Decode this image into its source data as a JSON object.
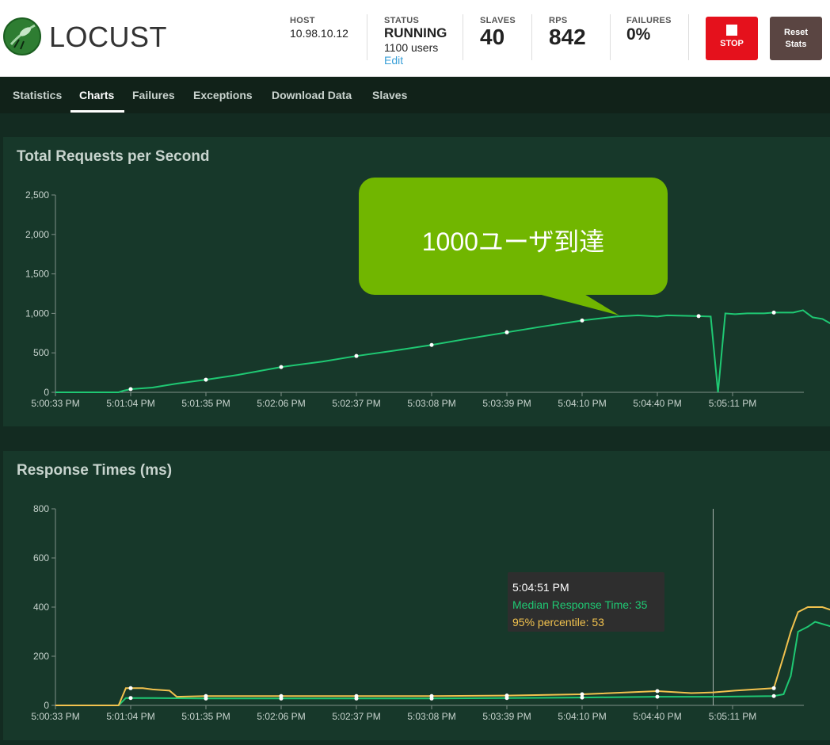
{
  "header": {
    "logo_text": "LOCUST",
    "host": {
      "label": "HOST",
      "value": "10.98.10.12"
    },
    "status": {
      "label": "STATUS",
      "value": "RUNNING",
      "users": "1100 users",
      "edit_label": "Edit"
    },
    "slaves": {
      "label": "SLAVES",
      "value": "40"
    },
    "rps": {
      "label": "RPS",
      "value": "842"
    },
    "failures": {
      "label": "FAILURES",
      "value": "0%"
    },
    "stop_label": "STOP",
    "reset_label_line1": "Reset",
    "reset_label_line2": "Stats"
  },
  "nav": {
    "tabs": [
      {
        "label": "Statistics"
      },
      {
        "label": "Charts"
      },
      {
        "label": "Failures"
      },
      {
        "label": "Exceptions"
      },
      {
        "label": "Download Data"
      },
      {
        "label": "Slaves"
      }
    ],
    "active": "Charts"
  },
  "colors": {
    "rps_line": "#1fc873",
    "median_line": "#1fc873",
    "p95_line": "#f2c24e",
    "callout": "#71b600",
    "stop": "#e5111c"
  },
  "callout": {
    "text": "1000ユーザ到達"
  },
  "tooltip": {
    "time": "5:04:51 PM",
    "median": "Median Response Time: 35",
    "p95": "95% percentile: 53"
  },
  "chart_data": [
    {
      "type": "line",
      "title": "Total Requests per Second",
      "x_ticks": [
        "5:00:33 PM",
        "5:01:04 PM",
        "5:01:35 PM",
        "5:02:06 PM",
        "5:02:37 PM",
        "5:03:08 PM",
        "5:03:39 PM",
        "5:04:10 PM",
        "5:04:40 PM",
        "5:05:11 PM"
      ],
      "y_ticks": [
        "0",
        "500",
        "1,000",
        "1,500",
        "2,000",
        "2,500"
      ],
      "ylim": [
        0,
        2500
      ],
      "xlim_seconds": [
        0,
        298
      ],
      "series": [
        {
          "points": [
            [
              0,
              0
            ],
            [
              26,
              0
            ],
            [
              28,
              20
            ],
            [
              31,
              40
            ],
            [
              40,
              60
            ],
            [
              50,
              110
            ],
            [
              62,
              160
            ],
            [
              75,
              220
            ],
            [
              93,
              320
            ],
            [
              110,
              390
            ],
            [
              124,
              460
            ],
            [
              140,
              530
            ],
            [
              155,
              600
            ],
            [
              170,
              680
            ],
            [
              186,
              760
            ],
            [
              200,
              830
            ],
            [
              217,
              910
            ],
            [
              231,
              960
            ],
            [
              240,
              975
            ],
            [
              248,
              960
            ],
            [
              252,
              975
            ],
            [
              265,
              965
            ],
            [
              270,
              960
            ],
            [
              273,
              0
            ],
            [
              276,
              1000
            ],
            [
              280,
              990
            ],
            [
              285,
              1000
            ],
            [
              292,
              1000
            ],
            [
              296,
              1010
            ],
            [
              304,
              1010
            ],
            [
              308,
              1040
            ],
            [
              312,
              950
            ],
            [
              316,
              930
            ],
            [
              320,
              860
            ],
            [
              326,
              840
            ],
            [
              334,
              840
            ],
            [
              345,
              850
            ],
            [
              355,
              840
            ]
          ],
          "markers": [
            [
              31,
              40
            ],
            [
              62,
              160
            ],
            [
              93,
              320
            ],
            [
              124,
              460
            ],
            [
              155,
              600
            ],
            [
              186,
              760
            ],
            [
              217,
              910
            ],
            [
              265,
              965
            ],
            [
              296,
              1010
            ]
          ]
        }
      ]
    },
    {
      "type": "line",
      "title": "Response Times (ms)",
      "x_ticks": [
        "5:00:33 PM",
        "5:01:04 PM",
        "5:01:35 PM",
        "5:02:06 PM",
        "5:02:37 PM",
        "5:03:08 PM",
        "5:03:39 PM",
        "5:04:10 PM",
        "5:04:40 PM",
        "5:05:11 PM"
      ],
      "y_ticks": [
        "0",
        "200",
        "400",
        "600",
        "800"
      ],
      "ylim": [
        0,
        800
      ],
      "hover_x": 271,
      "series": [
        {
          "name": "Median Response Time",
          "points": [
            [
              0,
              0
            ],
            [
              26,
              0
            ],
            [
              29,
              30
            ],
            [
              40,
              30
            ],
            [
              62,
              28
            ],
            [
              93,
              28
            ],
            [
              124,
              28
            ],
            [
              155,
              28
            ],
            [
              186,
              30
            ],
            [
              217,
              32
            ],
            [
              248,
              35
            ],
            [
              271,
              35
            ],
            [
              296,
              38
            ],
            [
              300,
              45
            ],
            [
              303,
              120
            ],
            [
              306,
              300
            ],
            [
              310,
              320
            ],
            [
              313,
              340
            ],
            [
              320,
              320
            ],
            [
              326,
              300
            ],
            [
              335,
              300
            ]
          ],
          "markers": [
            [
              31,
              30
            ],
            [
              62,
              28
            ],
            [
              93,
              28
            ],
            [
              124,
              28
            ],
            [
              155,
              28
            ],
            [
              186,
              30
            ],
            [
              217,
              32
            ],
            [
              248,
              35
            ],
            [
              296,
              38
            ]
          ]
        },
        {
          "name": "95% percentile",
          "points": [
            [
              0,
              0
            ],
            [
              26,
              0
            ],
            [
              29,
              70
            ],
            [
              36,
              70
            ],
            [
              40,
              65
            ],
            [
              47,
              60
            ],
            [
              50,
              35
            ],
            [
              62,
              38
            ],
            [
              93,
              38
            ],
            [
              124,
              38
            ],
            [
              155,
              38
            ],
            [
              186,
              40
            ],
            [
              217,
              45
            ],
            [
              248,
              58
            ],
            [
              262,
              50
            ],
            [
              271,
              53
            ],
            [
              280,
              60
            ],
            [
              296,
              70
            ],
            [
              300,
              200
            ],
            [
              303,
              300
            ],
            [
              306,
              380
            ],
            [
              310,
              400
            ],
            [
              316,
              400
            ],
            [
              322,
              380
            ],
            [
              330,
              360
            ],
            [
              333,
              370
            ],
            [
              335,
              365
            ],
            [
              338,
              380
            ]
          ],
          "markers": [
            [
              31,
              70
            ],
            [
              62,
              38
            ],
            [
              93,
              38
            ],
            [
              124,
              38
            ],
            [
              155,
              38
            ],
            [
              186,
              40
            ],
            [
              217,
              45
            ],
            [
              248,
              58
            ],
            [
              296,
              70
            ]
          ]
        }
      ]
    }
  ]
}
